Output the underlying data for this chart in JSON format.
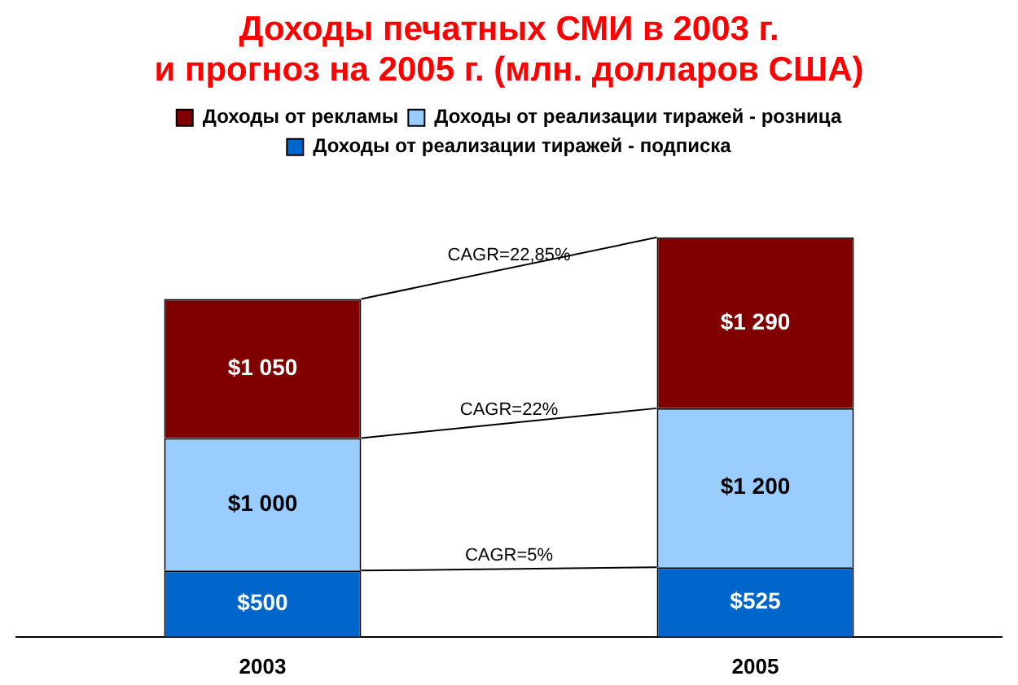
{
  "chart_data": {
    "type": "bar",
    "stacked": true,
    "title": "Доходы печатных СМИ в 2003 г.\nи прогноз на 2005 г. (млн. долларов США)",
    "categories": [
      "2003",
      "2005"
    ],
    "legend": "top",
    "series": [
      {
        "name": "Доходы от реализации тиражей - подписка",
        "color": "#0066cc",
        "values": [
          500,
          525
        ],
        "value_labels": [
          "$500",
          "$525"
        ]
      },
      {
        "name": "Доходы от реализации тиражей - розница",
        "color": "#99ccff",
        "values": [
          1000,
          1200
        ],
        "value_labels": [
          "$1 000",
          "$1 200"
        ]
      },
      {
        "name": "Доходы от рекламы",
        "color": "#800000",
        "values": [
          1050,
          1290
        ],
        "value_labels": [
          "$1 050",
          "$1 290"
        ]
      }
    ],
    "annotations": [
      "CAGR=5%",
      "CAGR=22%",
      "CAGR=22,85%"
    ]
  }
}
